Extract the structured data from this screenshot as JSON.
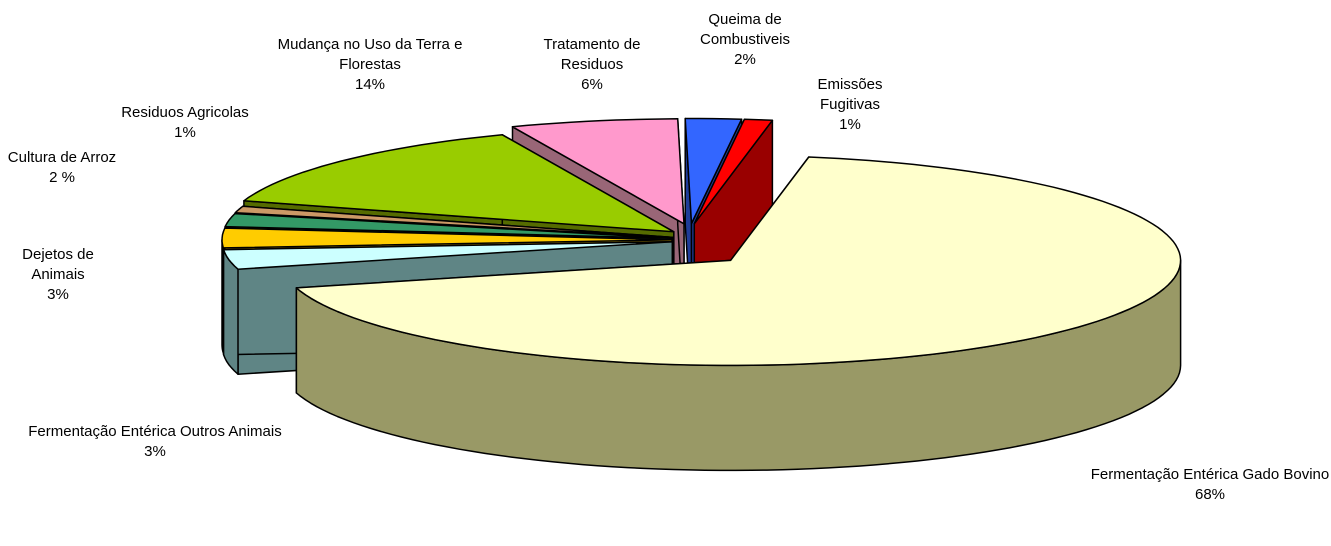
{
  "chart_data": {
    "type": "pie3d",
    "categories": [
      "Fermentação Entérica Gado Bovino",
      "Fermentação Entérica Outros Animais",
      "Dejetos de Animais",
      "Cultura de Arroz",
      "Residuos Agricolas",
      "Mudança no Uso da Terra e Florestas",
      "Tratamento de Residuos",
      "Queima de Combustiveis",
      "Emissões Fugitivas"
    ],
    "values": [
      68,
      3,
      3,
      2,
      1,
      14,
      6,
      2,
      1
    ],
    "value_labels": [
      "68%",
      "3%",
      "3%",
      "2 %",
      "1%",
      "14%",
      "6%",
      "2%",
      "1%"
    ],
    "colors": [
      "#ffffcc",
      "#ccffff",
      "#ffcc00",
      "#339966",
      "#cc9966",
      "#99cc00",
      "#ff99cc",
      "#3366ff",
      "#ff0000"
    ],
    "side_colors": [
      "#999966",
      "#5f8585",
      "#a68400",
      "#1f5c3d",
      "#806040",
      "#556b00",
      "#996677",
      "#1f3d99",
      "#990000"
    ]
  }
}
